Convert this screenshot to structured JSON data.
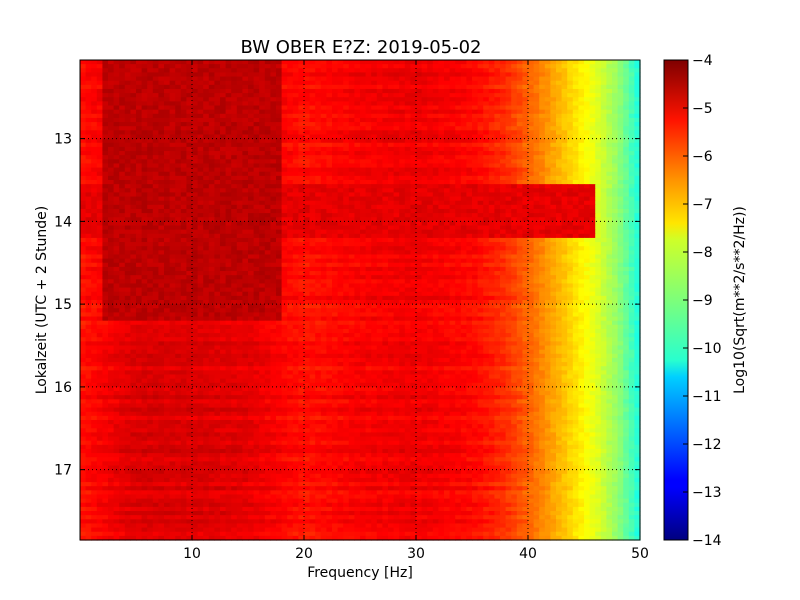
{
  "chart_data": {
    "type": "heatmap",
    "title": "BW OBER E?Z: 2019-05-02",
    "xlabel": "Frequency [Hz]",
    "ylabel": "Lokalzeit (UTC + 2 Stunde)",
    "xlim": [
      0,
      50
    ],
    "ylim": [
      12.05,
      17.85
    ],
    "x_ticks": [
      10,
      20,
      30,
      40,
      50
    ],
    "y_ticks": [
      13,
      14,
      15,
      16,
      17
    ],
    "grid": true,
    "colormap": "jet",
    "colorbar": {
      "label": "Log10(Sqrt(m**2/s**2/Hz))",
      "range": [
        -14,
        -4
      ],
      "ticks": [
        -4,
        -5,
        -6,
        -7,
        -8,
        -9,
        -10,
        -11,
        -12,
        -13,
        -14
      ]
    },
    "spectral_profile_approx": {
      "frequency_hz": [
        0,
        5,
        10,
        15,
        20,
        25,
        30,
        35,
        38,
        40,
        42,
        44,
        46,
        48,
        50
      ],
      "log10_amplitude": [
        -5.4,
        -4.9,
        -4.9,
        -5.0,
        -5.4,
        -5.2,
        -5.1,
        -5.3,
        -5.7,
        -6.2,
        -6.8,
        -7.4,
        -8.0,
        -8.8,
        -10.0
      ]
    },
    "time_features": [
      {
        "time_range": [
          12.05,
          15.2
        ],
        "freq_range": [
          2,
          18
        ],
        "description_value": -4.6
      },
      {
        "time_range": [
          13.55,
          14.2
        ],
        "freq_range": [
          0,
          46
        ],
        "description_value": -5.0
      }
    ]
  }
}
